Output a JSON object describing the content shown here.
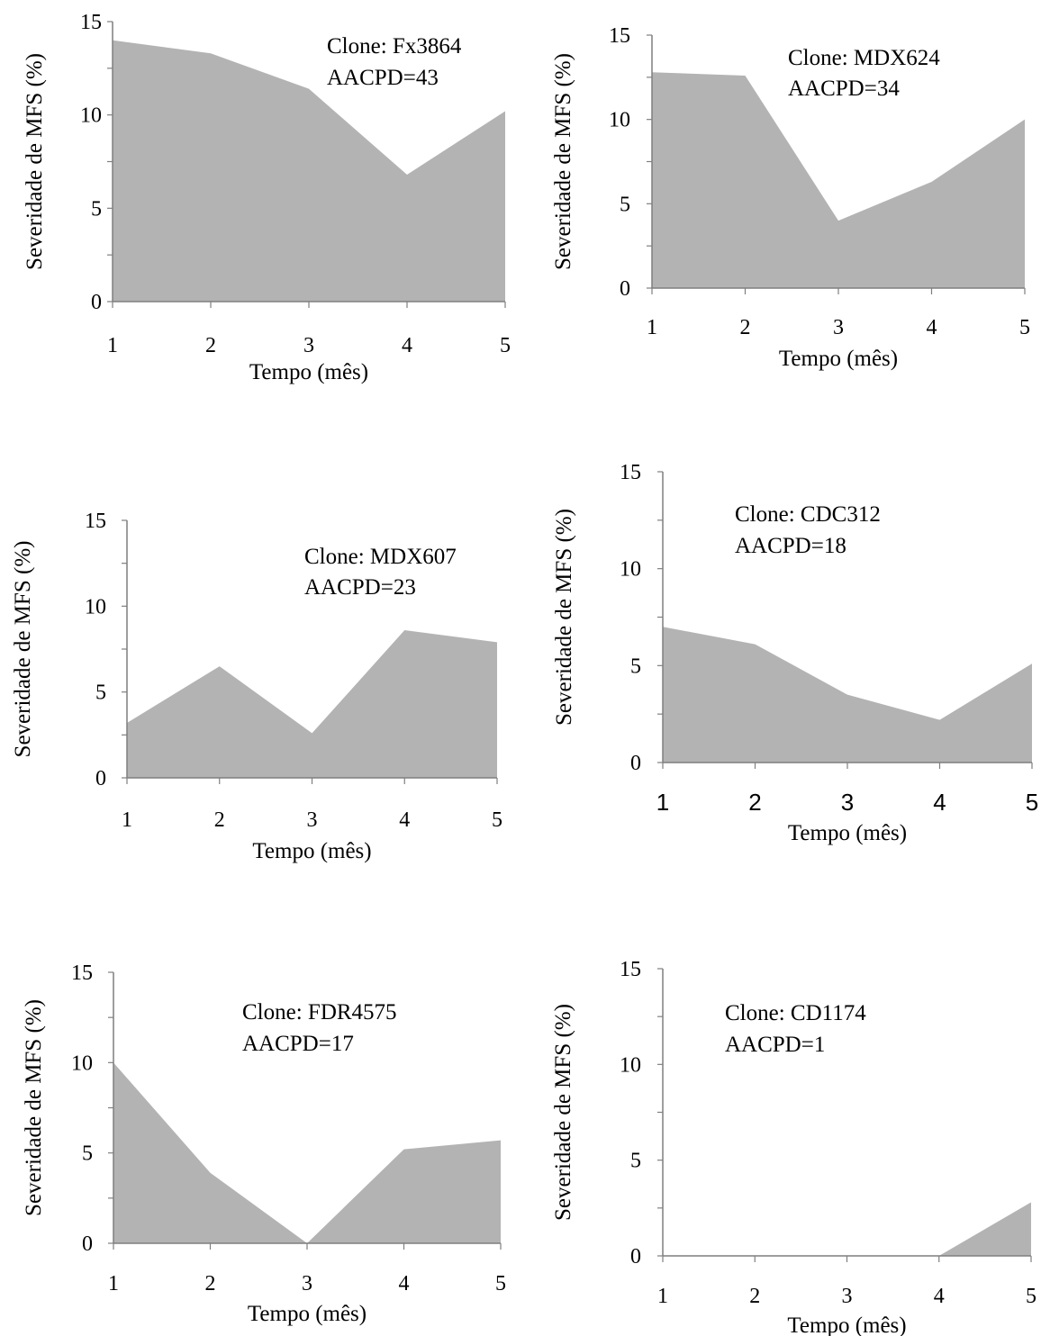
{
  "fill_color": "#b3b3b3",
  "axis_color": "#7f7f7f",
  "chart_data": [
    {
      "type": "area",
      "x": [
        1,
        2,
        3,
        4,
        5
      ],
      "values": [
        14,
        13.3,
        11.4,
        6.8,
        10.2
      ],
      "xlabel": "Tempo (mês)",
      "ylabel": "Severidade de MFS (%)",
      "ylim": [
        0,
        15
      ],
      "xlim": [
        1,
        5
      ],
      "yticks": [
        "0",
        "5",
        "10",
        "15"
      ],
      "xticks": [
        "1",
        "2",
        "3",
        "4",
        "5"
      ],
      "annotation": [
        "Clone: Fx3864",
        "AACPD=43"
      ],
      "grid": false
    },
    {
      "type": "area",
      "x": [
        1,
        2,
        3,
        4,
        5
      ],
      "values": [
        12.8,
        12.6,
        4,
        6.3,
        10
      ],
      "xlabel": "Tempo (mês)",
      "ylabel": "Severidade de MFS (%)",
      "ylim": [
        0,
        15
      ],
      "xlim": [
        1,
        5
      ],
      "yticks": [
        "0",
        "5",
        "10",
        "15"
      ],
      "xticks": [
        "1",
        "2",
        "3",
        "4",
        "5"
      ],
      "annotation": [
        "Clone: MDX624",
        "AACPD=34"
      ],
      "grid": false
    },
    {
      "type": "area",
      "x": [
        1,
        2,
        3,
        4,
        5
      ],
      "values": [
        3.2,
        6.5,
        2.6,
        8.6,
        7.9
      ],
      "xlabel": "Tempo (mês)",
      "ylabel": "Severidade de MFS (%)",
      "ylim": [
        0,
        15
      ],
      "xlim": [
        1,
        5
      ],
      "yticks": [
        "0",
        "5",
        "10",
        "15"
      ],
      "xticks": [
        "1",
        "2",
        "3",
        "4",
        "5"
      ],
      "annotation": [
        "Clone: MDX607",
        "AACPD=23"
      ],
      "grid": false
    },
    {
      "type": "area",
      "x": [
        1,
        2,
        3,
        4,
        5
      ],
      "values": [
        7,
        6.1,
        3.5,
        2.2,
        5.1
      ],
      "xlabel": "Tempo (mês)",
      "ylabel": "Severidade de MFS (%)",
      "ylim": [
        0,
        15
      ],
      "xlim": [
        1,
        5
      ],
      "yticks": [
        "0",
        "5",
        "10",
        "15"
      ],
      "xticks": [
        "1",
        "2",
        "3",
        "4",
        "5"
      ],
      "annotation": [
        "Clone: CDC312",
        "AACPD=18"
      ],
      "grid": false
    },
    {
      "type": "area",
      "x": [
        1,
        2,
        3,
        4,
        5
      ],
      "values": [
        10,
        3.9,
        0,
        5.2,
        5.7
      ],
      "xlabel": "Tempo (mês)",
      "ylabel": "Severidade de MFS (%)",
      "ylim": [
        0,
        15
      ],
      "xlim": [
        1,
        5
      ],
      "yticks": [
        "0",
        "5",
        "10",
        "15"
      ],
      "xticks": [
        "1",
        "2",
        "3",
        "4",
        "5"
      ],
      "annotation": [
        "Clone: FDR4575",
        "AACPD=17"
      ],
      "grid": false
    },
    {
      "type": "area",
      "x": [
        1,
        2,
        3,
        4,
        5
      ],
      "values": [
        0,
        0,
        0,
        0,
        2.8
      ],
      "xlabel": "Tempo (mês)",
      "ylabel": "Severidade de MFS (%)",
      "ylim": [
        0,
        15
      ],
      "xlim": [
        1,
        5
      ],
      "yticks": [
        "0",
        "5",
        "10",
        "15"
      ],
      "xticks": [
        "1",
        "2",
        "3",
        "4",
        "5"
      ],
      "annotation": [
        "Clone: CD1174",
        "AACPD=1"
      ],
      "grid": false
    }
  ]
}
